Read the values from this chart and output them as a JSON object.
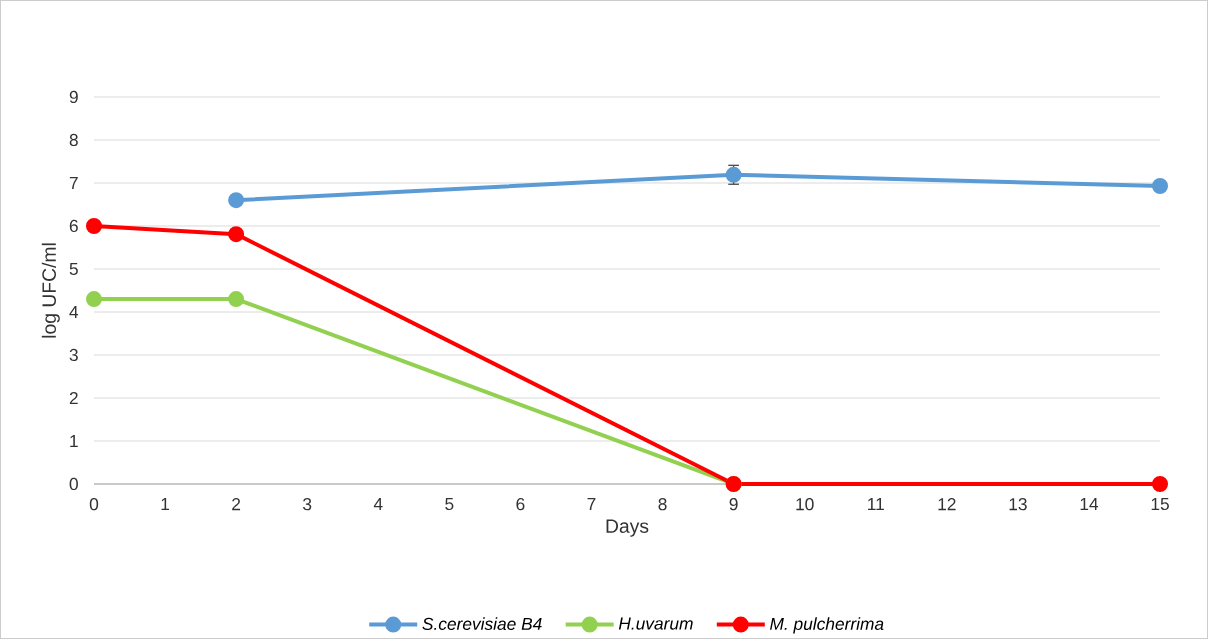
{
  "chart_data": {
    "type": "line",
    "xlabel": "Days",
    "ylabel": "log UFC/ml",
    "x": [
      0,
      2,
      9,
      15
    ],
    "series": [
      {
        "name": "S.cerevisiae B4",
        "color": "#5b9bd5",
        "values": [
          null,
          6.6,
          7.19,
          6.93
        ],
        "errors": [
          null,
          null,
          0.22,
          null
        ]
      },
      {
        "name": "H.uvarum",
        "color": "#92d050",
        "values": [
          4.3,
          4.3,
          0,
          null
        ]
      },
      {
        "name": "M. pulcherrima",
        "color": "#ff0000",
        "values": [
          6,
          5.81,
          0,
          0
        ]
      }
    ],
    "xlim": [
      0,
      15
    ],
    "ylim": [
      0,
      9
    ],
    "xticks": [
      0,
      1,
      2,
      3,
      4,
      5,
      6,
      7,
      8,
      9,
      10,
      11,
      12,
      13,
      14,
      15
    ],
    "yticks": [
      0,
      1,
      2,
      3,
      4,
      5,
      6,
      7,
      8,
      9
    ],
    "grid": "y",
    "legend": "bottom",
    "marker": "circle",
    "line_style": "solid"
  }
}
